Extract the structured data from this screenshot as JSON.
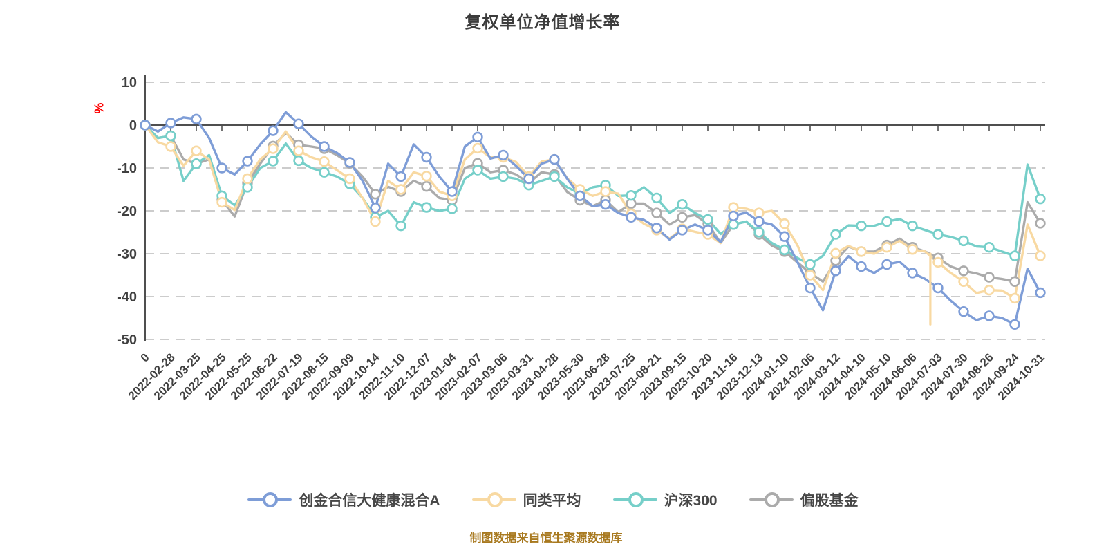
{
  "title": "复权单位净值增长率",
  "y_axis_unit": {
    "label": "%",
    "color": "#ff0000"
  },
  "footer": {
    "text": "制图数据来自恒生聚源数据库",
    "color": "#a8791f"
  },
  "chart_data": {
    "type": "line",
    "title": "复权单位净值增长率",
    "ylabel": "%",
    "ylim": [
      -50,
      10
    ],
    "y_ticks": [
      10,
      0,
      -10,
      -20,
      -30,
      -40,
      -50
    ],
    "grid": "horizontal-dashed",
    "legend_position": "bottom",
    "x_tick_labels": [
      "0",
      "2022-02-28",
      "2022-03-25",
      "2022-04-25",
      "2022-05-25",
      "2022-06-22",
      "2022-07-19",
      "2022-08-15",
      "2022-09-09",
      "2022-10-14",
      "2022-11-10",
      "2022-12-07",
      "2023-01-04",
      "2023-02-07",
      "2023-03-06",
      "2023-03-31",
      "2023-04-28",
      "2023-05-30",
      "2023-06-28",
      "2023-07-25",
      "2023-08-21",
      "2023-09-15",
      "2023-10-20",
      "2023-11-16",
      "2023-12-13",
      "2024-01-10",
      "2024-02-06",
      "2024-03-12",
      "2024-04-10",
      "2024-05-10",
      "2024-06-06",
      "2024-07-03",
      "2024-07-30",
      "2024-08-26",
      "2024-09-24",
      "2024-10-31"
    ],
    "points_per_tick_interval": 2,
    "series": [
      {
        "key": "fund",
        "name": "创金合信大健康混合A",
        "color": "#7e9dd7",
        "marker": "white-circle",
        "values": [
          0,
          -1.5,
          0.5,
          1.8,
          1.4,
          -3,
          -10,
          -11.5,
          -8.4,
          -4.5,
          -1.3,
          3,
          0.3,
          -2.7,
          -5,
          -6.5,
          -8.7,
          -13,
          -19.3,
          -9,
          -12,
          -4.5,
          -7.5,
          -12,
          -15.5,
          -5,
          -2.8,
          -7.8,
          -7,
          -9.5,
          -12.5,
          -9,
          -8,
          -12.5,
          -16.5,
          -18.9,
          -18.5,
          -20.5,
          -21.5,
          -22.1,
          -24,
          -26.7,
          -24.5,
          -23.2,
          -24.5,
          -27.3,
          -21.2,
          -20.4,
          -22.5,
          -23.2,
          -26,
          -31.9,
          -38,
          -43.2,
          -34,
          -30.6,
          -33,
          -34.5,
          -32.5,
          -31.9,
          -34.5,
          -35.9,
          -38,
          -41,
          -43.5,
          -45.5,
          -44.5,
          -45,
          -46.5,
          -33.5,
          -39.1
        ]
      },
      {
        "key": "peer_avg",
        "name": "同类平均",
        "color": "#f8d9a2",
        "marker": "white-circle",
        "values": [
          0,
          -4,
          -5,
          -9.5,
          -6,
          -8,
          -18,
          -19.8,
          -12.5,
          -8,
          -5.5,
          -1.5,
          -6,
          -7.5,
          -8.5,
          -10.5,
          -12.5,
          -17,
          -22.5,
          -13,
          -15,
          -11,
          -11.9,
          -15.5,
          -16.5,
          -8,
          -5.4,
          -7.5,
          -7.5,
          -8.6,
          -12,
          -8.5,
          -8,
          -12.4,
          -15,
          -16.5,
          -15.5,
          -16,
          -20.7,
          -23,
          -24.5,
          -26.5,
          -24.2,
          -24.9,
          -25.5,
          -27.5,
          -19.2,
          -19.5,
          -20.5,
          -20,
          -23,
          -28,
          -35,
          -38.5,
          -29.9,
          -28.2,
          -29.5,
          -30,
          -28.5,
          -27,
          -29,
          -29.5,
          -32,
          -34.5,
          -36.5,
          -39.2,
          -38.5,
          -38.6,
          -40.4,
          -23.2,
          -30.5
        ]
      },
      {
        "key": "csi300",
        "name": "沪深300",
        "color": "#76cfc9",
        "marker": "white-circle",
        "values": [
          0,
          -3,
          -2.5,
          -13,
          -9,
          -7,
          -16.5,
          -18.7,
          -14.5,
          -10,
          -8.4,
          -4.3,
          -8.3,
          -10,
          -11,
          -12,
          -13.7,
          -17,
          -21.5,
          -20,
          -23.5,
          -18,
          -19.2,
          -20,
          -19.5,
          -12.5,
          -10.5,
          -12.5,
          -12,
          -12.5,
          -14,
          -13,
          -12,
          -14.5,
          -16,
          -14.5,
          -14,
          -16.5,
          -16.4,
          -14.5,
          -17,
          -20.5,
          -18.5,
          -20.5,
          -22,
          -25.4,
          -23.2,
          -22.5,
          -25,
          -27.5,
          -29.1,
          -31,
          -32.5,
          -30.5,
          -25.5,
          -23.4,
          -23.5,
          -23.5,
          -22.5,
          -21.9,
          -23.5,
          -24.5,
          -25.5,
          -26.1,
          -27,
          -28.3,
          -28.5,
          -29.5,
          -30.5,
          -9.2,
          -17.2
        ]
      },
      {
        "key": "equity_fund",
        "name": "偏股基金",
        "color": "#ababab",
        "marker": "white-circle",
        "values": [
          0,
          -3,
          -2.5,
          -8,
          -9,
          -8,
          -17.5,
          -21.3,
          -13.5,
          -9,
          -4.9,
          -1.8,
          -4.6,
          -5,
          -5.5,
          -7,
          -8.9,
          -12,
          -16.1,
          -14.4,
          -15.5,
          -13,
          -14.3,
          -17,
          -17.5,
          -10,
          -8.9,
          -11,
          -10.5,
          -11.5,
          -13.5,
          -11,
          -11.5,
          -15.6,
          -17.5,
          -18.9,
          -17.5,
          -20.3,
          -18.3,
          -18.3,
          -20.5,
          -23.2,
          -21.5,
          -21,
          -23,
          -27.5,
          -23.2,
          -22.5,
          -25.5,
          -28.1,
          -29.5,
          -32,
          -34.5,
          -36.5,
          -31.6,
          -28.3,
          -29.5,
          -29.5,
          -28,
          -26.5,
          -28.5,
          -29.5,
          -31,
          -33,
          -34,
          -34.6,
          -35.5,
          -35.9,
          -36.5,
          -18,
          -22.9
        ]
      }
    ],
    "anomaly_spike": {
      "series_key": "peer_avg",
      "x_index": 61.4,
      "from": -30,
      "to": -46.5
    }
  }
}
